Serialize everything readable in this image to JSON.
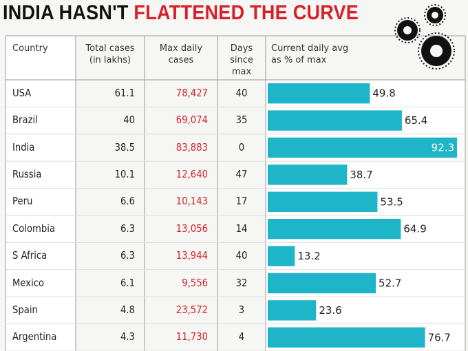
{
  "title": {
    "part1": "INDIA HASN'T",
    "part2": "FLATTENED THE CURVE"
  },
  "table": {
    "headers": [
      "Country",
      "Total cases\n(in lakhs)",
      "Max daily\ncases",
      "Days\nsince max",
      "Current daily avg\nas % of max"
    ],
    "rows": [
      [
        "USA",
        61.1,
        "78,427",
        40,
        49.8
      ],
      [
        "Brazil",
        40,
        "69,074",
        35,
        65.4
      ],
      [
        "India",
        38.5,
        "83,883",
        0,
        92.3
      ],
      [
        "Russia",
        10.1,
        "12,640",
        47,
        38.7
      ],
      [
        "Peru",
        6.6,
        "10,143",
        17,
        53.5
      ],
      [
        "Colombia",
        6.3,
        "13,056",
        14,
        64.9
      ],
      [
        "S Africa",
        6.3,
        "13,944",
        40,
        13.2
      ],
      [
        "Mexico",
        6.1,
        "9,556",
        32,
        52.7
      ],
      [
        "Spain",
        4.8,
        "23,572",
        3,
        23.6
      ],
      [
        "Argentina",
        4.3,
        "11,730",
        4,
        76.7
      ]
    ],
    "bar_color": "#1fb5c8"
  }
}
